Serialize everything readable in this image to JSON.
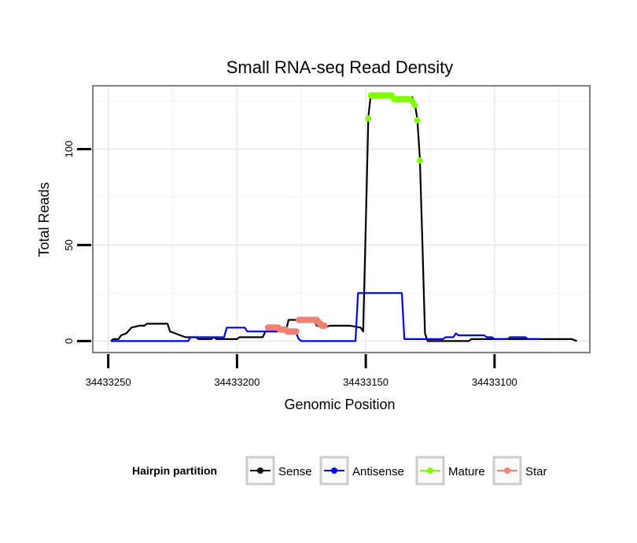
{
  "chart_data": {
    "type": "line",
    "title": "Small RNA-seq Read Density",
    "xlabel": "Genomic Position",
    "ylabel": "Total Reads",
    "xlim": [
      34433256,
      34433063
    ],
    "x_reversed": true,
    "ylim": [
      -6,
      133
    ],
    "x_ticks": [
      34433250,
      34433200,
      34433150,
      34433100
    ],
    "y_ticks": [
      0,
      50,
      100
    ],
    "grid": true,
    "legend_position": "bottom",
    "legend": {
      "title": "Hairpin partition",
      "entries": [
        {
          "label": "Sense",
          "color": "#000000"
        },
        {
          "label": "Antisense",
          "color": "#0000ff"
        },
        {
          "label": "Mature",
          "color": "#7fff00"
        },
        {
          "label": "Star",
          "color": "#f08070"
        }
      ]
    },
    "series": [
      {
        "name": "Sense",
        "color": "#000000",
        "kind": "line",
        "points": [
          [
            34433249,
            0
          ],
          [
            34433248,
            1
          ],
          [
            34433246,
            1
          ],
          [
            34433245,
            3
          ],
          [
            34433243,
            4
          ],
          [
            34433241,
            7
          ],
          [
            34433238,
            8
          ],
          [
            34433236,
            8
          ],
          [
            34433235,
            9
          ],
          [
            34433227,
            9
          ],
          [
            34433226,
            5
          ],
          [
            34433224,
            4
          ],
          [
            34433222,
            3
          ],
          [
            34433220,
            2
          ],
          [
            34433216,
            2
          ],
          [
            34433215,
            1
          ],
          [
            34433210,
            1
          ],
          [
            34433209,
            2
          ],
          [
            34433208,
            1
          ],
          [
            34433200,
            1
          ],
          [
            34433199,
            2
          ],
          [
            34433190,
            2
          ],
          [
            34433189,
            5
          ],
          [
            34433181,
            5
          ],
          [
            34433180,
            11
          ],
          [
            34433170,
            11
          ],
          [
            34433169,
            8
          ],
          [
            34433166,
            7
          ],
          [
            34433164,
            8
          ],
          [
            34433156,
            8
          ],
          [
            34433152,
            7
          ],
          [
            34433151,
            5
          ],
          [
            34433150,
            60
          ],
          [
            34433149,
            117
          ],
          [
            34433148,
            129
          ],
          [
            34433140,
            129
          ],
          [
            34433139,
            127
          ],
          [
            34433132,
            127
          ],
          [
            34433131,
            124
          ],
          [
            34433130,
            116
          ],
          [
            34433129,
            95
          ],
          [
            34433128,
            50
          ],
          [
            34433127,
            4
          ],
          [
            34433126,
            0
          ],
          [
            34433110,
            0
          ],
          [
            34433109,
            1
          ],
          [
            34433070,
            1
          ],
          [
            34433068,
            0
          ]
        ]
      },
      {
        "name": "Antisense",
        "color": "#0000ff",
        "kind": "line",
        "points": [
          [
            34433249,
            0
          ],
          [
            34433219,
            0
          ],
          [
            34433218,
            2
          ],
          [
            34433205,
            2
          ],
          [
            34433204,
            7
          ],
          [
            34433197,
            7
          ],
          [
            34433196,
            5
          ],
          [
            34433180,
            5
          ],
          [
            34433179,
            4
          ],
          [
            34433177,
            4
          ],
          [
            34433176,
            1
          ],
          [
            34433175,
            0
          ],
          [
            34433154,
            0
          ],
          [
            34433153,
            25
          ],
          [
            34433136,
            25
          ],
          [
            34433135,
            1
          ],
          [
            34433120,
            1
          ],
          [
            34433119,
            2
          ],
          [
            34433116,
            2
          ],
          [
            34433115,
            4
          ],
          [
            34433114,
            3
          ],
          [
            34433104,
            3
          ],
          [
            34433103,
            2
          ],
          [
            34433101,
            2
          ],
          [
            34433100,
            1
          ],
          [
            34433095,
            1
          ],
          [
            34433094,
            2
          ],
          [
            34433088,
            2
          ],
          [
            34433087,
            1
          ],
          [
            34433082,
            1
          ]
        ]
      },
      {
        "name": "Mature",
        "color": "#7fff00",
        "kind": "points",
        "points": [
          [
            34433149,
            116
          ],
          [
            34433148,
            128
          ],
          [
            34433147.5,
            128
          ],
          [
            34433147,
            128
          ],
          [
            34433146.5,
            128
          ],
          [
            34433146,
            128
          ],
          [
            34433145.5,
            128
          ],
          [
            34433145,
            128
          ],
          [
            34433144.5,
            128
          ],
          [
            34433144,
            128
          ],
          [
            34433143.5,
            128
          ],
          [
            34433143,
            128
          ],
          [
            34433142.5,
            128
          ],
          [
            34433142,
            128
          ],
          [
            34433141.5,
            128
          ],
          [
            34433141,
            128
          ],
          [
            34433140.5,
            128
          ],
          [
            34433140,
            128
          ],
          [
            34433139,
            126
          ],
          [
            34433138.5,
            126
          ],
          [
            34433138,
            126
          ],
          [
            34433137.5,
            126
          ],
          [
            34433137,
            126
          ],
          [
            34433136.5,
            126
          ],
          [
            34433136,
            126
          ],
          [
            34433135.5,
            126
          ],
          [
            34433135,
            126
          ],
          [
            34433134.5,
            126
          ],
          [
            34433134,
            126
          ],
          [
            34433133.5,
            126
          ],
          [
            34433133,
            126
          ],
          [
            34433132,
            125
          ],
          [
            34433131,
            123
          ],
          [
            34433130,
            115
          ],
          [
            34433129,
            94
          ]
        ]
      },
      {
        "name": "Star",
        "color": "#f08070",
        "kind": "points",
        "points": [
          [
            34433188,
            7
          ],
          [
            34433187.5,
            7
          ],
          [
            34433187,
            7
          ],
          [
            34433186.5,
            7
          ],
          [
            34433186,
            7
          ],
          [
            34433185.5,
            7
          ],
          [
            34433185,
            7
          ],
          [
            34433184.5,
            7
          ],
          [
            34433184,
            7
          ],
          [
            34433183.5,
            6
          ],
          [
            34433183,
            6
          ],
          [
            34433182.5,
            6
          ],
          [
            34433182,
            6
          ],
          [
            34433181.5,
            6
          ],
          [
            34433181,
            6
          ],
          [
            34433180.5,
            5
          ],
          [
            34433180,
            5
          ],
          [
            34433179.5,
            5
          ],
          [
            34433179,
            5
          ],
          [
            34433178.5,
            5
          ],
          [
            34433178,
            5
          ],
          [
            34433177.5,
            5
          ],
          [
            34433177,
            5
          ],
          [
            34433176,
            11
          ],
          [
            34433175.5,
            11
          ],
          [
            34433175,
            11
          ],
          [
            34433174.5,
            11
          ],
          [
            34433174,
            11
          ],
          [
            34433173.5,
            11
          ],
          [
            34433173,
            11
          ],
          [
            34433172.5,
            11
          ],
          [
            34433172,
            11
          ],
          [
            34433171.5,
            11
          ],
          [
            34433171,
            11
          ],
          [
            34433170.5,
            11
          ],
          [
            34433170,
            11
          ],
          [
            34433169.5,
            11
          ],
          [
            34433169,
            11
          ],
          [
            34433168.5,
            10
          ],
          [
            34433168,
            9
          ],
          [
            34433167.5,
            9
          ],
          [
            34433167,
            8
          ],
          [
            34433166.5,
            8
          ],
          [
            34433166,
            8
          ]
        ]
      }
    ]
  }
}
